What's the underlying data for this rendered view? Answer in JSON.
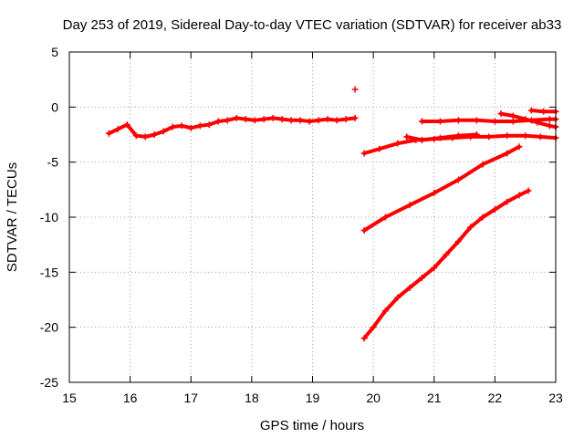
{
  "chart_data": {
    "type": "scatter",
    "title": "Day 253 of 2019, Sidereal Day-to-day VTEC variation (SDTVAR) for receiver ab33",
    "xlabel": "GPS time / hours",
    "ylabel": "SDTVAR / TECUs",
    "xlim": [
      15,
      23
    ],
    "ylim": [
      -25,
      5
    ],
    "xticks": [
      15,
      16,
      17,
      18,
      19,
      20,
      21,
      22,
      23
    ],
    "yticks": [
      -25,
      -20,
      -15,
      -10,
      -5,
      0,
      5
    ],
    "grid": true,
    "legend": "none",
    "marker": "plus",
    "color": "#ff0000",
    "series": [
      {
        "x": [
          15.65,
          15.8,
          15.95,
          16.1,
          16.25,
          16.4,
          16.55,
          16.7,
          16.85,
          17.0,
          17.15,
          17.3,
          17.45,
          17.6,
          17.75,
          17.9,
          18.05,
          18.2,
          18.35,
          18.5,
          18.65,
          18.8,
          18.95,
          19.1,
          19.25,
          19.4,
          19.55,
          19.7
        ],
        "y": [
          -2.4,
          -2.0,
          -1.6,
          -2.6,
          -2.7,
          -2.5,
          -2.2,
          -1.8,
          -1.7,
          -1.9,
          -1.7,
          -1.6,
          -1.3,
          -1.2,
          -1.0,
          -1.1,
          -1.2,
          -1.1,
          -1.0,
          -1.1,
          -1.2,
          -1.2,
          -1.3,
          -1.2,
          -1.1,
          -1.2,
          -1.1,
          -1.0
        ]
      },
      {
        "x": [
          19.7
        ],
        "y": [
          1.6
        ]
      },
      {
        "x": [
          19.85,
          20.1,
          20.4,
          20.7,
          21.0,
          21.3,
          21.6,
          21.9,
          22.2,
          22.5,
          22.75,
          23.0
        ],
        "y": [
          -4.2,
          -3.8,
          -3.3,
          -3.0,
          -2.9,
          -2.8,
          -2.7,
          -2.7,
          -2.6,
          -2.6,
          -2.7,
          -2.8
        ]
      },
      {
        "x": [
          20.55,
          20.8,
          21.1,
          21.4,
          21.7
        ],
        "y": [
          -2.7,
          -3.0,
          -2.8,
          -2.6,
          -2.5
        ]
      },
      {
        "x": [
          20.8,
          21.1,
          21.4,
          21.7,
          22.0,
          22.3,
          22.6,
          22.9,
          23.0
        ],
        "y": [
          -1.3,
          -1.3,
          -1.2,
          -1.2,
          -1.3,
          -1.3,
          -1.2,
          -1.1,
          -1.1
        ]
      },
      {
        "x": [
          22.1,
          22.3,
          22.5,
          22.7,
          22.9,
          23.0
        ],
        "y": [
          -0.6,
          -0.8,
          -1.1,
          -1.4,
          -1.7,
          -1.8
        ]
      },
      {
        "x": [
          22.6,
          22.8,
          23.0
        ],
        "y": [
          -0.3,
          -0.4,
          -0.4
        ]
      },
      {
        "x": [
          19.85,
          20.2,
          20.6,
          21.0,
          21.4,
          21.8,
          22.2,
          22.4
        ],
        "y": [
          -11.2,
          -10.0,
          -8.9,
          -7.8,
          -6.6,
          -5.2,
          -4.2,
          -3.6
        ]
      },
      {
        "x": [
          19.85,
          20.0,
          20.2,
          20.4,
          20.6,
          20.8,
          21.0,
          21.2,
          21.4,
          21.6,
          21.8,
          22.0,
          22.2,
          22.4,
          22.55
        ],
        "y": [
          -21.0,
          -20.0,
          -18.5,
          -17.3,
          -16.4,
          -15.5,
          -14.6,
          -13.4,
          -12.2,
          -10.9,
          -10.0,
          -9.3,
          -8.6,
          -8.0,
          -7.6
        ]
      }
    ]
  }
}
